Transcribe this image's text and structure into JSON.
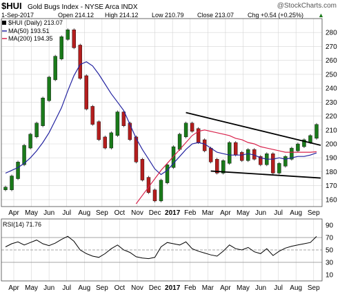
{
  "header": {
    "symbol": "$HUI",
    "name": "Gold Bugs Index - NYSE Arca INDX",
    "watermark": "@StockCharts.com",
    "date": "1-Sep-2017",
    "open": "Open 214.12",
    "high": "High 214.12",
    "low": "Low 210.79",
    "close": "Close 213.07",
    "chg": "Chg +0.54 (+0.25%)",
    "chg_arrow": "▲"
  },
  "legend": {
    "daily": "$HUI (Daily) 213.07",
    "ma50": "MA(50) 193.51",
    "ma200": "MA(200) 194.35"
  },
  "rsi_label": "RSI(14) 71.76",
  "colors": {
    "price": "#000000",
    "ma50": "#2323a0",
    "ma200": "#d8204a",
    "up": "#1a7a1a",
    "down": "#b41e1e",
    "grid": "#d4d4d4",
    "trendline": "#000000",
    "rsi": "#000000",
    "rsi_bands": "#888888"
  },
  "chart_data": [
    {
      "type": "line",
      "title": "$HUI Gold Bugs Index - NYSE Arca INDX",
      "x_labels": [
        "Apr",
        "May",
        "Jun",
        "Jul",
        "Aug",
        "Sep",
        "Oct",
        "Nov",
        "Dec",
        "2017",
        "Feb",
        "Mar",
        "Apr",
        "May",
        "Jun",
        "Jul",
        "Aug",
        "Sep"
      ],
      "ylim": [
        155,
        290
      ],
      "y_ticks": [
        160,
        170,
        180,
        190,
        200,
        210,
        220,
        230,
        240,
        250,
        260,
        270,
        280
      ],
      "grid": true,
      "series": [
        {
          "name": "$HUI (Daily)",
          "values": [
            168,
            176,
            186,
            198,
            206,
            214,
            232,
            247,
            262,
            276,
            281,
            270,
            248,
            226,
            215,
            204,
            198,
            207,
            222,
            214,
            204,
            188,
            175,
            166,
            160,
            173,
            184,
            197,
            206,
            214,
            210,
            202,
            196,
            188,
            180,
            187,
            200,
            193,
            189,
            195,
            190,
            186,
            192,
            180,
            185,
            190,
            196,
            199,
            202,
            205,
            213
          ]
        },
        {
          "name": "MA(50)",
          "values": [
            179,
            181,
            183,
            186,
            190,
            195,
            201,
            208,
            217,
            226,
            238,
            249,
            257,
            259,
            256,
            250,
            243,
            236,
            230,
            224,
            214,
            204,
            196,
            189,
            182,
            178,
            181,
            186,
            191,
            196,
            200,
            201,
            200,
            197,
            194,
            193,
            192,
            192,
            192,
            193,
            192,
            190,
            189,
            189,
            190,
            189,
            190,
            191,
            191,
            192,
            193.51
          ]
        },
        {
          "name": "MA(200)",
          "values": [
            null,
            null,
            null,
            null,
            null,
            null,
            null,
            null,
            null,
            null,
            null,
            null,
            null,
            null,
            null,
            null,
            null,
            null,
            null,
            null,
            null,
            157,
            163,
            169,
            175,
            181,
            186,
            191,
            196,
            201,
            206,
            209,
            210,
            209,
            208,
            207,
            206,
            204,
            203,
            201,
            200,
            198,
            197,
            196,
            195,
            194,
            194,
            194,
            194,
            194,
            194.35
          ]
        }
      ]
    },
    {
      "type": "line",
      "title": "RSI(14) 71.76",
      "ylim": [
        0,
        100
      ],
      "y_ticks": [
        10,
        30,
        50,
        70,
        90
      ],
      "reference_lines": [
        30,
        50,
        70
      ],
      "series": [
        {
          "name": "RSI(14)",
          "values": [
            55,
            60,
            63,
            58,
            62,
            66,
            60,
            57,
            61,
            67,
            72,
            64,
            50,
            44,
            40,
            38,
            44,
            52,
            58,
            50,
            46,
            39,
            37,
            36,
            38,
            55,
            62,
            60,
            58,
            63,
            52,
            48,
            45,
            42,
            40,
            48,
            58,
            52,
            50,
            54,
            47,
            44,
            52,
            41,
            48,
            53,
            56,
            58,
            60,
            62,
            71.76
          ]
        }
      ]
    }
  ]
}
